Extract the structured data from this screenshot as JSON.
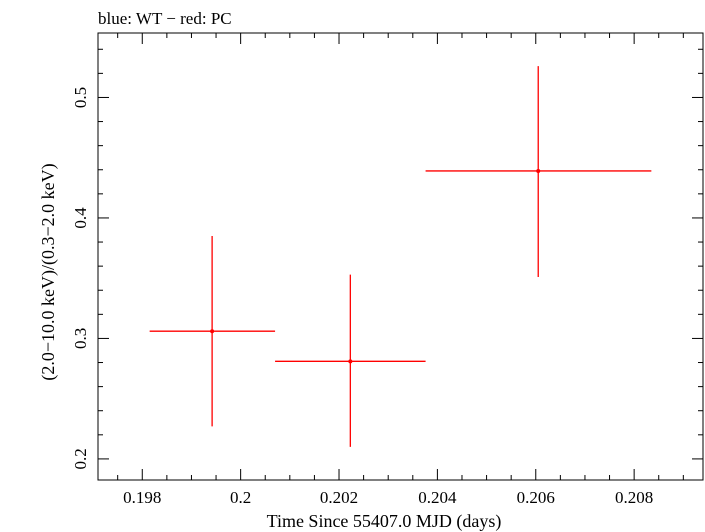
{
  "chart_data": {
    "type": "scatter",
    "title": "blue: WT − red: PC",
    "xlabel": "Time Since 55407.0 MJD (days)",
    "ylabel": "(2.0−10.0 keV)/(0.3−2.0 keV)",
    "xlim": [
      0.1971,
      0.2094
    ],
    "ylim": [
      0.1825,
      0.5535
    ],
    "xticks": [
      0.198,
      0.2,
      0.202,
      0.204,
      0.206,
      0.208
    ],
    "xtick_labels": [
      "0.198",
      "0.2",
      "0.202",
      "0.204",
      "0.206",
      "0.208"
    ],
    "yticks": [
      0.2,
      0.3,
      0.4,
      0.5
    ],
    "ytick_labels": [
      "0.2",
      "0.3",
      "0.4",
      "0.5"
    ],
    "grid": false,
    "series": [
      {
        "color": "#ff0000",
        "points": [
          {
            "x": 0.19942,
            "y": 0.306,
            "xerr": [
              0.19815,
              0.2007
            ],
            "yerr": [
              0.227,
              0.385
            ]
          },
          {
            "x": 0.20223,
            "y": 0.281,
            "xerr": [
              0.2007,
              0.20376
            ],
            "yerr": [
              0.21,
              0.353
            ]
          },
          {
            "x": 0.20605,
            "y": 0.439,
            "xerr": [
              0.20376,
              0.20835
            ],
            "yerr": [
              0.351,
              0.526
            ]
          }
        ]
      }
    ]
  }
}
